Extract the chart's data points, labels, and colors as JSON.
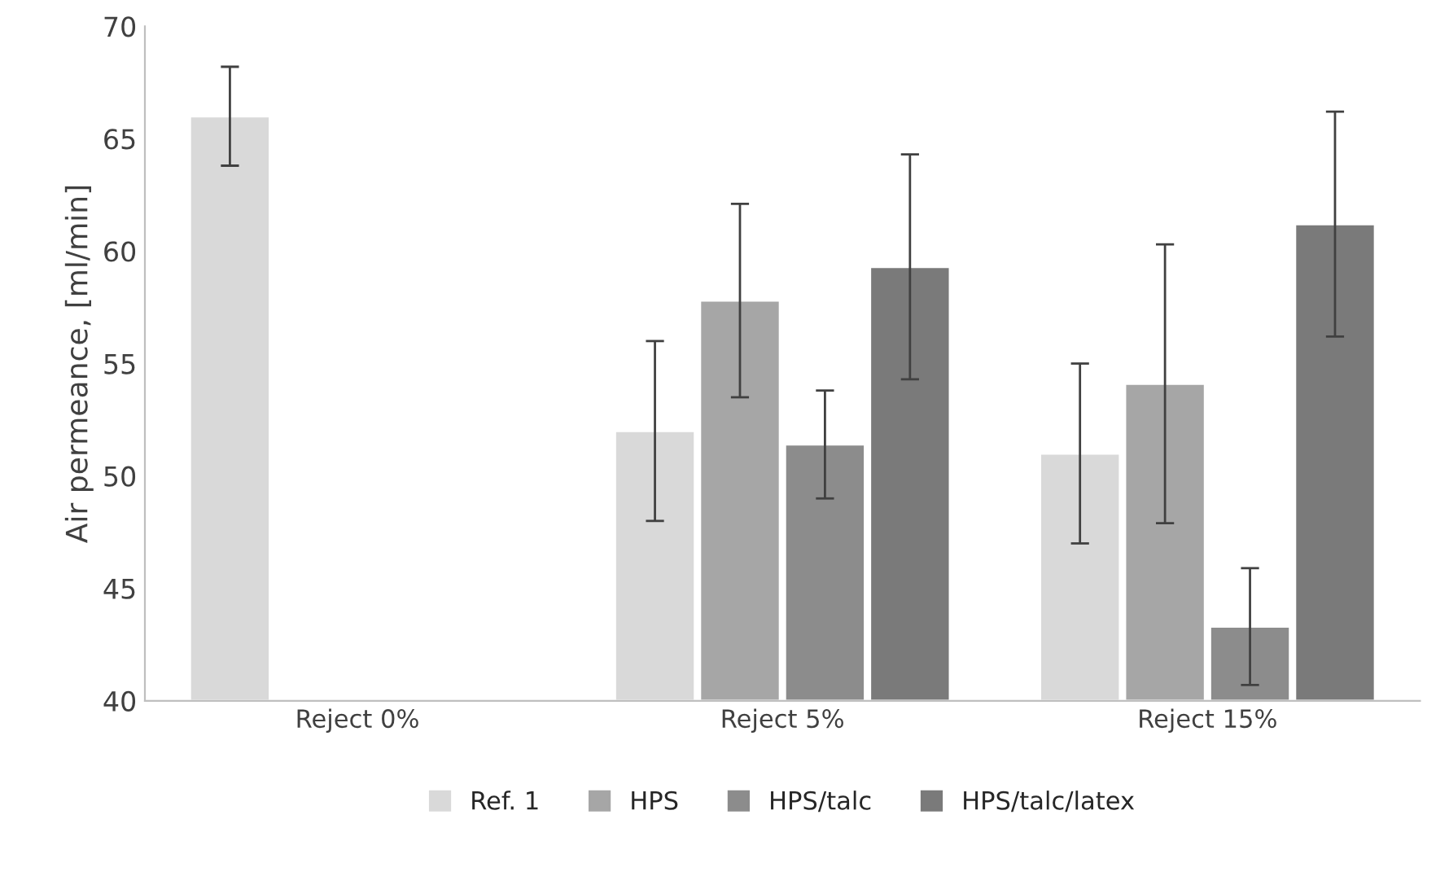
{
  "chart_data": {
    "type": "bar",
    "ylabel": "Air permeance, [ml/min]",
    "categories": [
      "Reject 0%",
      "Reject 5%",
      "Reject 15%"
    ],
    "ylim": [
      40,
      70
    ],
    "yticks": [
      40,
      45,
      50,
      55,
      60,
      65,
      70
    ],
    "grid": false,
    "legend": "bottom",
    "series": [
      {
        "name": "Ref. 1",
        "color": "#d9d9d9",
        "values": [
          66,
          52,
          51
        ],
        "errors": [
          [
            63.8,
            68.2
          ],
          [
            48,
            56
          ],
          [
            47,
            55
          ]
        ]
      },
      {
        "name": "HPS",
        "color": "#a6a6a6",
        "values": [
          null,
          57.8,
          54.1
        ],
        "errors": [
          null,
          [
            53.5,
            62.1
          ],
          [
            47.9,
            60.3
          ]
        ]
      },
      {
        "name": "HPS/talc",
        "color": "#8c8c8c",
        "values": [
          null,
          51.4,
          43.3
        ],
        "errors": [
          null,
          [
            49,
            53.8
          ],
          [
            40.7,
            45.9
          ]
        ]
      },
      {
        "name": "HPS/talc/latex",
        "color": "#7a7a7a",
        "values": [
          null,
          59.3,
          61.2
        ],
        "errors": [
          null,
          [
            54.3,
            64.3
          ],
          [
            56.2,
            66.2
          ]
        ]
      }
    ]
  }
}
